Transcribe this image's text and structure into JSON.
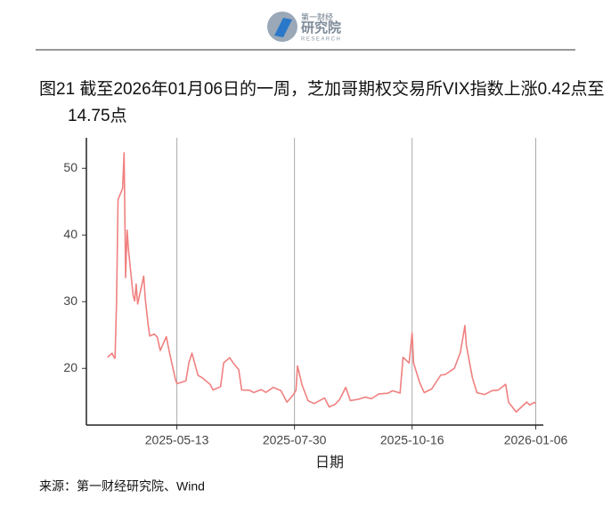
{
  "header": {
    "logo_top": "第一财经",
    "logo_main": "研究院",
    "logo_sub": "RESEARCH"
  },
  "source": "来源：第一财经研究院、Wind",
  "chart_data": {
    "type": "line",
    "title": "图21  截至2026年01月06日的一周，芝加哥期权交易所VIX指数上涨0.42点至14.75点",
    "x_label": "日期",
    "x": [
      "2025-03-28",
      "2025-03-31",
      "2025-04-01",
      "2025-04-02",
      "2025-04-03",
      "2025-04-04",
      "2025-04-07",
      "2025-04-08",
      "2025-04-09",
      "2025-04-10",
      "2025-04-11",
      "2025-04-14",
      "2025-04-15",
      "2025-04-16",
      "2025-04-17",
      "2025-04-21",
      "2025-04-22",
      "2025-04-23",
      "2025-04-24",
      "2025-04-25",
      "2025-04-28",
      "2025-04-30",
      "2025-05-02",
      "2025-05-06",
      "2025-05-08",
      "2025-05-12",
      "2025-05-13",
      "2025-05-15",
      "2025-05-19",
      "2025-05-21",
      "2025-05-23",
      "2025-05-27",
      "2025-05-30",
      "2025-06-04",
      "2025-06-06",
      "2025-06-11",
      "2025-06-13",
      "2025-06-17",
      "2025-06-20",
      "2025-06-23",
      "2025-06-25",
      "2025-06-30",
      "2025-07-03",
      "2025-07-08",
      "2025-07-11",
      "2025-07-16",
      "2025-07-21",
      "2025-07-25",
      "2025-07-29",
      "2025-07-31",
      "2025-08-01",
      "2025-08-04",
      "2025-08-08",
      "2025-08-12",
      "2025-08-15",
      "2025-08-19",
      "2025-08-22",
      "2025-08-26",
      "2025-08-29",
      "2025-09-02",
      "2025-09-05",
      "2025-09-10",
      "2025-09-15",
      "2025-09-19",
      "2025-09-24",
      "2025-09-30",
      "2025-10-03",
      "2025-10-08",
      "2025-10-10",
      "2025-10-14",
      "2025-10-16",
      "2025-10-17",
      "2025-10-21",
      "2025-10-24",
      "2025-10-29",
      "2025-11-04",
      "2025-11-07",
      "2025-11-13",
      "2025-11-17",
      "2025-11-20",
      "2025-11-21",
      "2025-11-25",
      "2025-11-28",
      "2025-12-03",
      "2025-12-08",
      "2025-12-12",
      "2025-12-17",
      "2025-12-19",
      "2025-12-24",
      "2025-12-31",
      "2026-01-02",
      "2026-01-05",
      "2026-01-06"
    ],
    "series": [
      {
        "name": "VIX",
        "color": "#f08080",
        "values": [
          21.65,
          22.28,
          21.77,
          21.51,
          30.02,
          45.31,
          46.98,
          52.33,
          33.62,
          40.72,
          37.56,
          30.89,
          30.12,
          32.64,
          29.65,
          33.82,
          30.57,
          28.45,
          26.47,
          24.84,
          25.15,
          24.7,
          22.68,
          24.76,
          22.48,
          18.39,
          17.72,
          17.83,
          18.14,
          20.87,
          22.29,
          18.96,
          18.57,
          17.61,
          16.77,
          17.26,
          20.82,
          21.6,
          20.62,
          19.83,
          16.76,
          16.73,
          16.38,
          16.81,
          16.4,
          17.16,
          16.65,
          14.93,
          15.98,
          16.72,
          20.38,
          17.52,
          15.15,
          14.73,
          15.09,
          15.57,
          14.22,
          14.62,
          15.36,
          17.17,
          15.18,
          15.35,
          15.69,
          15.45,
          16.18,
          16.28,
          16.65,
          16.3,
          21.66,
          20.81,
          25.31,
          20.78,
          17.87,
          16.37,
          16.92,
          19.0,
          19.08,
          20.0,
          22.38,
          26.42,
          23.43,
          18.56,
          16.35,
          16.08,
          16.66,
          16.74,
          17.62,
          14.91,
          13.47,
          14.95,
          14.51,
          14.9,
          14.75
        ]
      }
    ],
    "xlim": [
      "2025-03-14",
      "2026-01-11"
    ],
    "xticks": [
      "2025-05-13",
      "2025-07-30",
      "2025-10-16",
      "2026-01-06"
    ],
    "ylim": [
      11.5,
      53.5
    ],
    "yticks": [
      20,
      30,
      40,
      50
    ],
    "grid": "x"
  }
}
